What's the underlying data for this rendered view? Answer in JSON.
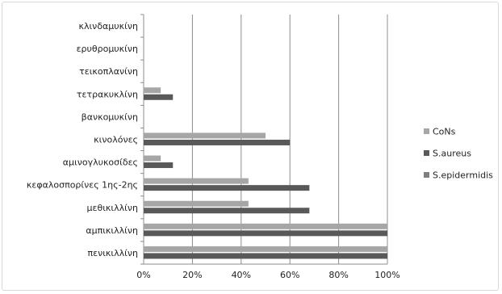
{
  "chart_data": {
    "type": "bar",
    "orientation": "horizontal",
    "categories": [
      "κλινδαμυκίνη",
      "ερυθρομυκίνη",
      "τεικοπλανίνη",
      "τετρακυκλίνη",
      "βανκομυκίνη",
      "κινολόνες",
      "αμινογλυκοσίδες",
      "κεφαλοσπορίνες 1ης-2ης",
      "μεθικιλλίνη",
      "αμπικιλλίνη",
      "πενικιλλίνη"
    ],
    "series": [
      {
        "name": "CoNs",
        "color": "#a6a6a6",
        "values": [
          0,
          0,
          0,
          7,
          0,
          50,
          7,
          43,
          43,
          100,
          100
        ]
      },
      {
        "name": "S.aureus",
        "color": "#595959",
        "values": [
          0,
          0,
          0,
          12,
          0,
          60,
          12,
          68,
          68,
          100,
          100
        ]
      },
      {
        "name": "S.epidermidis",
        "color": "#7f7f7f",
        "values": [
          0,
          0,
          0,
          0,
          0,
          0,
          0,
          0,
          0,
          0,
          0
        ]
      }
    ],
    "x_ticks": [
      "0%",
      "20%",
      "40%",
      "60%",
      "80%",
      "100%"
    ],
    "xlim": [
      0,
      100
    ],
    "grid": true,
    "legend_position": "right"
  }
}
